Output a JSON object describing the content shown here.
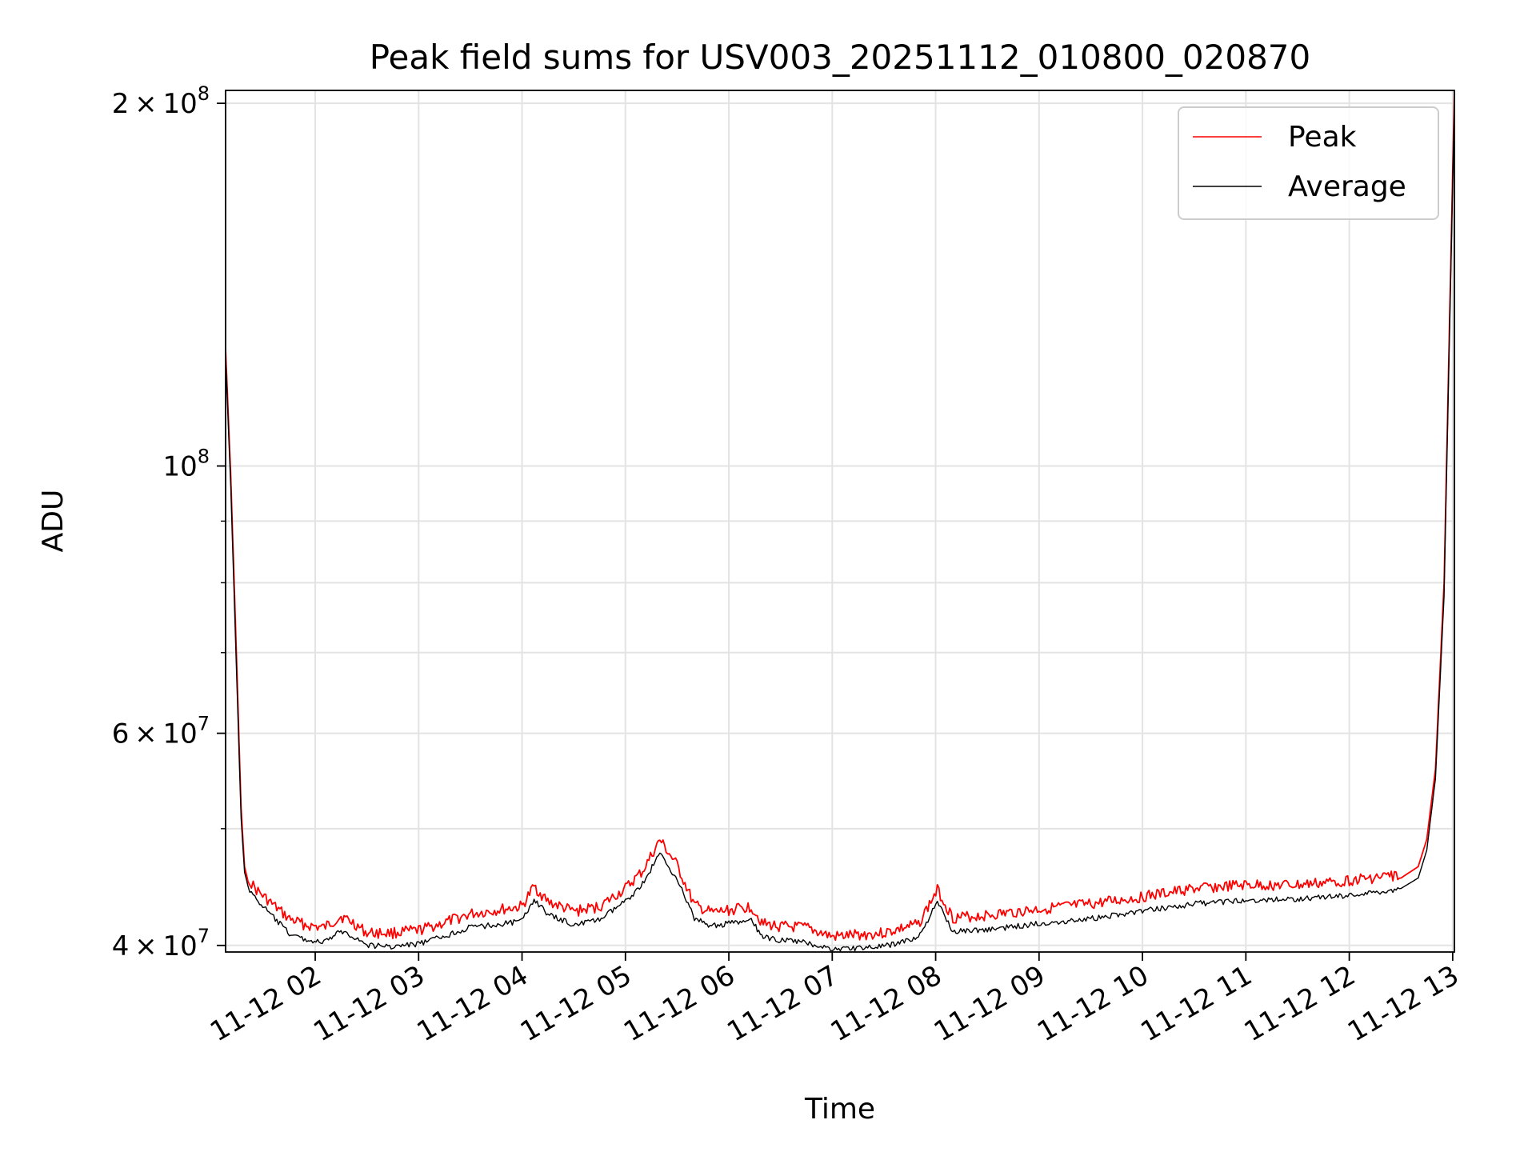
{
  "chart_data": {
    "type": "line",
    "title": "Peak field sums for USV003_20251112_010800_020870",
    "xlabel": "Time",
    "ylabel": "ADU",
    "yscale": "log",
    "grid": true,
    "legend_position": "top-right",
    "xlim": [
      "2025-11-12 01:08",
      "2025-11-12 13:01"
    ],
    "ylim": [
      39500000,
      205000000
    ],
    "x_ticks": [
      "11-12 02",
      "11-12 03",
      "11-12 04",
      "11-12 05",
      "11-12 06",
      "11-12 07",
      "11-12 08",
      "11-12 09",
      "11-12 10",
      "11-12 11",
      "11-12 12",
      "11-12 13"
    ],
    "x_tick_times": [
      "2025-11-12 02:00",
      "2025-11-12 03:00",
      "2025-11-12 04:00",
      "2025-11-12 05:00",
      "2025-11-12 06:00",
      "2025-11-12 07:00",
      "2025-11-12 08:00",
      "2025-11-12 09:00",
      "2025-11-12 10:00",
      "2025-11-12 11:00",
      "2025-11-12 12:00",
      "2025-11-12 13:00"
    ],
    "y_ticks_major": [
      {
        "value": 40000000,
        "mantissa": "4",
        "exponent": "7"
      },
      {
        "value": 60000000,
        "mantissa": "6",
        "exponent": "7"
      },
      {
        "value": 100000000,
        "mantissa": "",
        "exponent": "8"
      },
      {
        "value": 200000000,
        "mantissa": "2",
        "exponent": "8"
      }
    ],
    "y_ticks_minor": [
      50000000,
      70000000,
      80000000,
      90000000
    ],
    "series": [
      {
        "name": "Peak",
        "color": "#ff0000",
        "x": [
          "2025-11-12 01:08",
          "2025-11-12 01:11",
          "2025-11-12 01:14",
          "2025-11-12 01:17",
          "2025-11-12 01:19",
          "2025-11-12 01:21",
          "2025-11-12 01:25",
          "2025-11-12 01:35",
          "2025-11-12 01:45",
          "2025-11-12 01:55",
          "2025-11-12 02:05",
          "2025-11-12 02:15",
          "2025-11-12 02:22",
          "2025-11-12 02:30",
          "2025-11-12 02:45",
          "2025-11-12 03:00",
          "2025-11-12 03:15",
          "2025-11-12 03:30",
          "2025-11-12 03:45",
          "2025-11-12 04:00",
          "2025-11-12 04:07",
          "2025-11-12 04:15",
          "2025-11-12 04:30",
          "2025-11-12 04:45",
          "2025-11-12 05:00",
          "2025-11-12 05:10",
          "2025-11-12 05:20",
          "2025-11-12 05:30",
          "2025-11-12 05:40",
          "2025-11-12 05:50",
          "2025-11-12 06:00",
          "2025-11-12 06:13",
          "2025-11-12 06:20",
          "2025-11-12 06:30",
          "2025-11-12 06:45",
          "2025-11-12 07:00",
          "2025-11-12 07:30",
          "2025-11-12 07:50",
          "2025-11-12 08:01",
          "2025-11-12 08:10",
          "2025-11-12 08:30",
          "2025-11-12 09:00",
          "2025-11-12 09:30",
          "2025-11-12 10:00",
          "2025-11-12 10:30",
          "2025-11-12 11:00",
          "2025-11-12 11:30",
          "2025-11-12 12:00",
          "2025-11-12 12:30",
          "2025-11-12 12:40",
          "2025-11-12 12:45",
          "2025-11-12 12:50",
          "2025-11-12 12:55",
          "2025-11-12 13:01"
        ],
        "y": [
          125000000,
          98000000,
          72000000,
          52000000,
          46500000,
          45200000,
          44300000,
          43000000,
          41800000,
          41300000,
          41100000,
          42000000,
          41500000,
          40700000,
          40700000,
          40900000,
          41500000,
          42200000,
          42500000,
          42800000,
          44500000,
          43200000,
          42400000,
          42800000,
          44300000,
          45800000,
          48600000,
          46300000,
          42900000,
          42300000,
          42500000,
          42800000,
          41400000,
          41200000,
          41100000,
          40400000,
          40700000,
          41400000,
          44200000,
          41900000,
          42100000,
          42600000,
          43000000,
          43600000,
          44300000,
          44600000,
          44600000,
          45000000,
          45500000,
          46500000,
          49000000,
          56000000,
          80000000,
          205000000
        ]
      },
      {
        "name": "Average",
        "color": "#000000",
        "x": [
          "2025-11-12 01:08",
          "2025-11-12 01:11",
          "2025-11-12 01:14",
          "2025-11-12 01:17",
          "2025-11-12 01:19",
          "2025-11-12 01:21",
          "2025-11-12 01:25",
          "2025-11-12 01:35",
          "2025-11-12 01:45",
          "2025-11-12 01:55",
          "2025-11-12 02:05",
          "2025-11-12 02:15",
          "2025-11-12 02:22",
          "2025-11-12 02:30",
          "2025-11-12 02:45",
          "2025-11-12 03:00",
          "2025-11-12 03:15",
          "2025-11-12 03:30",
          "2025-11-12 03:45",
          "2025-11-12 04:00",
          "2025-11-12 04:07",
          "2025-11-12 04:15",
          "2025-11-12 04:30",
          "2025-11-12 04:45",
          "2025-11-12 05:00",
          "2025-11-12 05:10",
          "2025-11-12 05:20",
          "2025-11-12 05:30",
          "2025-11-12 05:40",
          "2025-11-12 05:50",
          "2025-11-12 06:00",
          "2025-11-12 06:13",
          "2025-11-12 06:20",
          "2025-11-12 06:30",
          "2025-11-12 06:45",
          "2025-11-12 07:00",
          "2025-11-12 07:30",
          "2025-11-12 07:50",
          "2025-11-12 08:01",
          "2025-11-12 08:10",
          "2025-11-12 08:30",
          "2025-11-12 09:00",
          "2025-11-12 09:30",
          "2025-11-12 10:00",
          "2025-11-12 10:30",
          "2025-11-12 11:00",
          "2025-11-12 11:30",
          "2025-11-12 12:00",
          "2025-11-12 12:30",
          "2025-11-12 12:40",
          "2025-11-12 12:45",
          "2025-11-12 12:50",
          "2025-11-12 12:55",
          "2025-11-12 13:01"
        ],
        "y": [
          123000000,
          96000000,
          70000000,
          51000000,
          46000000,
          44800000,
          43900000,
          42400000,
          41000000,
          40500000,
          40300000,
          41200000,
          40800000,
          40100000,
          40000000,
          40200000,
          40800000,
          41500000,
          41700000,
          42000000,
          43800000,
          42500000,
          41700000,
          42100000,
          43600000,
          45100000,
          47800000,
          45500000,
          42200000,
          41600000,
          41800000,
          42000000,
          40700000,
          40500000,
          40300000,
          39800000,
          40000000,
          40700000,
          43500000,
          41200000,
          41300000,
          41800000,
          42200000,
          42800000,
          43400000,
          43700000,
          43800000,
          44100000,
          44600000,
          45500000,
          48000000,
          55000000,
          78000000,
          200000000
        ]
      }
    ]
  }
}
